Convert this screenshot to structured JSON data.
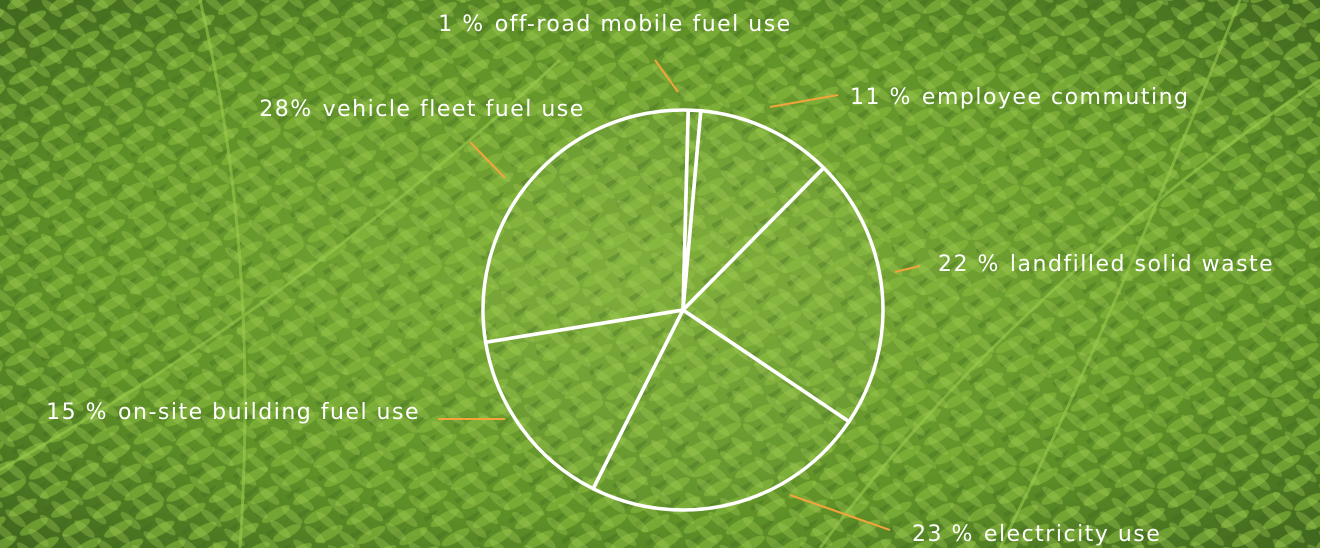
{
  "chart_data": {
    "type": "pie",
    "categories": [
      "off-road mobile fuel use",
      "employee commuting",
      "landfilled solid waste",
      "electricity use",
      "on-site building fuel use",
      "vehicle fleet fuel use"
    ],
    "values": [
      1,
      11,
      22,
      23,
      15,
      28
    ],
    "value_labels": [
      "1 %",
      "11 %",
      "22 %",
      "23 %",
      "15 %",
      "28%"
    ],
    "color": "#ffffff"
  }
}
